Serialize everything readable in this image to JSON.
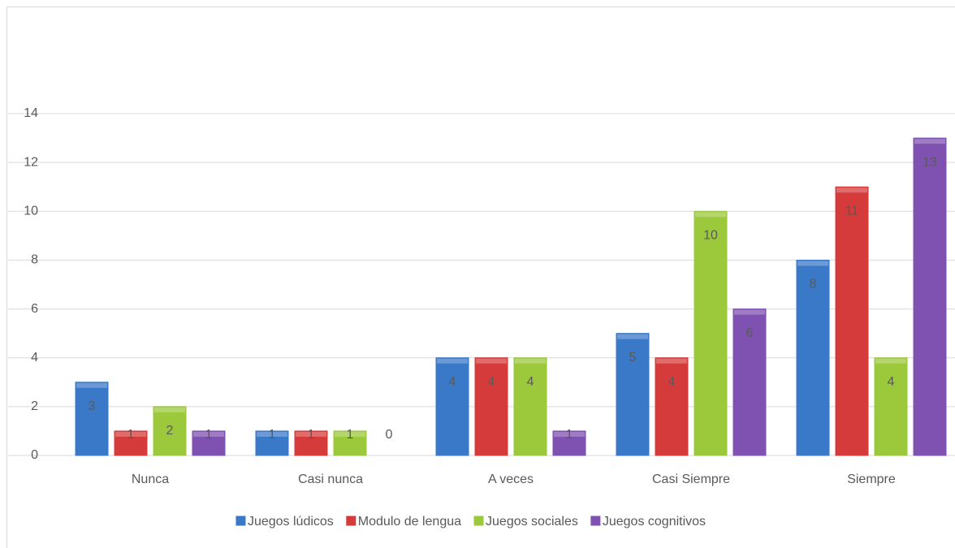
{
  "chart_data": {
    "type": "bar",
    "categories": [
      "Nunca",
      "Casi nunca",
      "A veces",
      "Casi Siempre",
      "Siempre"
    ],
    "series": [
      {
        "name": "Juegos lúdicos",
        "color": "#3a78c8",
        "values": [
          3,
          1,
          4,
          5,
          8
        ]
      },
      {
        "name": "Modulo de lengua",
        "color": "#d63b3b",
        "values": [
          1,
          1,
          4,
          4,
          11
        ]
      },
      {
        "name": "Juegos sociales",
        "color": "#9cc93c",
        "values": [
          2,
          1,
          4,
          10,
          4
        ]
      },
      {
        "name": "Juegos cognitivos",
        "color": "#7f52b2",
        "values": [
          1,
          0,
          1,
          6,
          13
        ]
      }
    ],
    "ylim": [
      0,
      14
    ],
    "yticks": [
      0,
      2,
      4,
      6,
      8,
      10,
      12,
      14
    ],
    "grid": true,
    "legend": "bottom",
    "data_labels": true
  }
}
